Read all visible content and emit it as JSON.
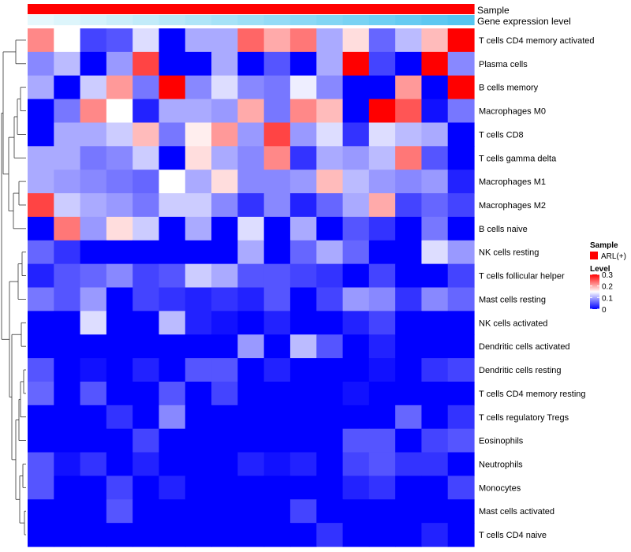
{
  "chart_data": {
    "type": "heatmap",
    "title": "",
    "annotations": [
      {
        "name": "Sample",
        "kind": "categorical",
        "values": [
          "ARL(+)",
          "ARL(+)",
          "ARL(+)",
          "ARL(+)",
          "ARL(+)",
          "ARL(+)",
          "ARL(+)",
          "ARL(+)",
          "ARL(+)",
          "ARL(+)",
          "ARL(+)",
          "ARL(+)",
          "ARL(+)",
          "ARL(+)",
          "ARL(+)",
          "ARL(+)",
          "ARL(+)"
        ]
      },
      {
        "name": "Gene expression level",
        "kind": "continuous",
        "values": [
          0.0,
          0.06,
          0.12,
          0.18,
          0.24,
          0.3,
          0.36,
          0.42,
          0.48,
          0.54,
          0.6,
          0.66,
          0.72,
          0.78,
          0.84,
          0.9,
          0.96
        ]
      }
    ],
    "legend": {
      "sample_title": "Sample",
      "sample_entries": [
        {
          "label": "ARL(+)",
          "color": "#ff0000"
        }
      ],
      "level_title": "Level",
      "level_ticks": [
        "0.3",
        "0.2",
        "0.1",
        "0"
      ],
      "level_range": [
        0,
        0.3
      ],
      "colors": {
        "low": "#0000ff",
        "mid": "#ffffff",
        "high": "#ff0000"
      },
      "midpoint": 0.15,
      "placement": "right"
    },
    "row_labels": [
      "T cells CD4 memory activated",
      "Plasma cells",
      "B cells memory",
      "Macrophages M0",
      "T cells CD8",
      "T cells gamma delta",
      "Macrophages M1",
      "Macrophages M2",
      "B cells naive",
      "NK cells resting",
      "T cells follicular helper",
      "Mast cells resting",
      "NK cells activated",
      "Dendritic cells activated",
      "Dendritic cells resting",
      "T cells CD4 memory resting",
      "T cells regulatory  Tregs",
      "Eosinophils",
      "Neutrophils",
      "Monocytes",
      "Mast cells activated",
      "T cells CD4 naive"
    ],
    "values": [
      [
        0.22,
        0.15,
        0.04,
        0.05,
        0.13,
        0.0,
        0.1,
        0.1,
        0.24,
        0.2,
        0.23,
        0.1,
        0.17,
        0.06,
        0.11,
        0.19,
        0.3
      ],
      [
        0.08,
        0.11,
        0.0,
        0.09,
        0.26,
        0.0,
        0.0,
        0.1,
        0.0,
        0.05,
        0.0,
        0.1,
        0.3,
        0.04,
        0.0,
        0.3,
        0.08
      ],
      [
        0.1,
        0.0,
        0.12,
        0.21,
        0.07,
        0.3,
        0.08,
        0.13,
        0.08,
        0.07,
        0.14,
        0.08,
        0.0,
        0.0,
        0.21,
        0.0,
        0.3
      ],
      [
        0.0,
        0.07,
        0.22,
        0.15,
        0.02,
        0.1,
        0.1,
        0.09,
        0.2,
        0.07,
        0.22,
        0.19,
        0.0,
        0.3,
        0.25,
        0.01,
        0.07
      ],
      [
        0.0,
        0.1,
        0.1,
        0.12,
        0.19,
        0.07,
        0.16,
        0.21,
        0.09,
        0.26,
        0.09,
        0.13,
        0.03,
        0.13,
        0.11,
        0.1,
        0.0
      ],
      [
        0.1,
        0.1,
        0.07,
        0.08,
        0.12,
        0.0,
        0.17,
        0.1,
        0.08,
        0.22,
        0.03,
        0.1,
        0.09,
        0.11,
        0.23,
        0.05,
        0.0
      ],
      [
        0.1,
        0.09,
        0.08,
        0.07,
        0.06,
        0.15,
        0.1,
        0.17,
        0.08,
        0.08,
        0.09,
        0.19,
        0.11,
        0.09,
        0.08,
        0.09,
        0.02
      ],
      [
        0.26,
        0.12,
        0.1,
        0.09,
        0.07,
        0.12,
        0.12,
        0.08,
        0.03,
        0.08,
        0.02,
        0.06,
        0.1,
        0.2,
        0.04,
        0.06,
        0.04
      ],
      [
        0.0,
        0.23,
        0.09,
        0.17,
        0.12,
        0.0,
        0.1,
        0.0,
        0.13,
        0.0,
        0.1,
        0.0,
        0.05,
        0.03,
        0.0,
        0.07,
        0.0
      ],
      [
        0.06,
        0.03,
        0.0,
        0.0,
        0.0,
        0.0,
        0.0,
        0.0,
        0.1,
        0.0,
        0.06,
        0.1,
        0.06,
        0.0,
        0.0,
        0.13,
        0.09
      ],
      [
        0.02,
        0.05,
        0.06,
        0.08,
        0.04,
        0.05,
        0.12,
        0.1,
        0.05,
        0.05,
        0.04,
        0.03,
        0.0,
        0.04,
        0.0,
        0.0,
        0.04
      ],
      [
        0.07,
        0.05,
        0.09,
        0.0,
        0.04,
        0.03,
        0.02,
        0.03,
        0.02,
        0.05,
        0.0,
        0.04,
        0.09,
        0.08,
        0.03,
        0.08,
        0.06
      ],
      [
        0.0,
        0.0,
        0.13,
        0.0,
        0.0,
        0.11,
        0.02,
        0.01,
        0.0,
        0.02,
        0.0,
        0.0,
        0.02,
        0.04,
        0.0,
        0.0,
        0.0
      ],
      [
        0.0,
        0.0,
        0.0,
        0.0,
        0.0,
        0.0,
        0.0,
        0.0,
        0.09,
        0.0,
        0.11,
        0.05,
        0.0,
        0.02,
        0.0,
        0.0,
        0.0
      ],
      [
        0.05,
        0.0,
        0.01,
        0.0,
        0.02,
        0.0,
        0.05,
        0.05,
        0.0,
        0.02,
        0.0,
        0.0,
        0.0,
        0.01,
        0.0,
        0.03,
        0.04
      ],
      [
        0.06,
        0.0,
        0.05,
        0.0,
        0.0,
        0.05,
        0.0,
        0.04,
        0.0,
        0.0,
        0.0,
        0.0,
        0.01,
        0.0,
        0.0,
        0.0,
        0.0
      ],
      [
        0.0,
        0.0,
        0.0,
        0.03,
        0.0,
        0.08,
        0.0,
        0.0,
        0.0,
        0.0,
        0.0,
        0.0,
        0.0,
        0.0,
        0.06,
        0.0,
        0.03
      ],
      [
        0.0,
        0.0,
        0.0,
        0.0,
        0.04,
        0.0,
        0.0,
        0.0,
        0.0,
        0.0,
        0.0,
        0.0,
        0.05,
        0.05,
        0.0,
        0.04,
        0.05
      ],
      [
        0.05,
        0.01,
        0.03,
        0.0,
        0.02,
        0.0,
        0.0,
        0.0,
        0.02,
        0.01,
        0.02,
        0.0,
        0.04,
        0.05,
        0.03,
        0.03,
        0.0
      ],
      [
        0.05,
        0.0,
        0.0,
        0.04,
        0.0,
        0.02,
        0.0,
        0.0,
        0.0,
        0.0,
        0.0,
        0.0,
        0.02,
        0.03,
        0.0,
        0.0,
        0.04
      ],
      [
        0.0,
        0.0,
        0.0,
        0.05,
        0.0,
        0.0,
        0.0,
        0.0,
        0.0,
        0.0,
        0.04,
        0.0,
        0.0,
        0.0,
        0.0,
        0.0,
        0.0
      ],
      [
        0.0,
        0.0,
        0.0,
        0.0,
        0.0,
        0.0,
        0.0,
        0.0,
        0.0,
        0.0,
        0.0,
        0.03,
        0.0,
        0.0,
        0.0,
        0.02,
        0.0
      ]
    ]
  }
}
